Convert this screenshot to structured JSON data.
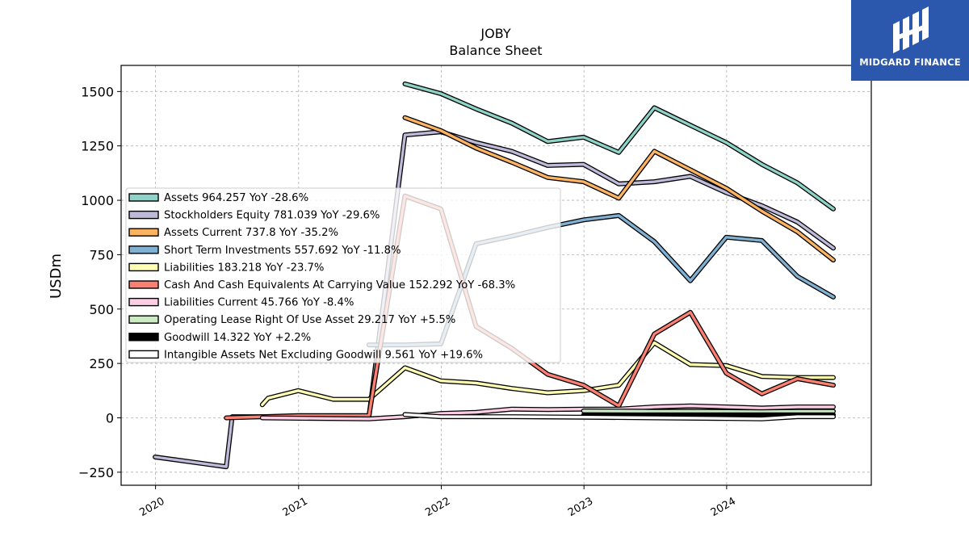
{
  "logo": {
    "text": "MIDGARD FINANCE",
    "color": "#2b57ad"
  },
  "chart_data": {
    "type": "line",
    "title": "JOBY",
    "subtitle": "Balance  Sheet",
    "xlabel": "",
    "ylabel": "USDm",
    "xlim": [
      "2019-10-05",
      "2025-01-05"
    ],
    "ylim": [
      -310,
      1620
    ],
    "yticks": [
      -250,
      0,
      250,
      500,
      750,
      1000,
      1250,
      1500
    ],
    "ytick_labels": [
      "−250",
      "0",
      "250",
      "500",
      "750",
      "1000",
      "1250",
      "1500"
    ],
    "xticks": [
      "2020-01-01",
      "2021-01-01",
      "2022-01-01",
      "2023-01-01",
      "2024-01-01"
    ],
    "xtick_labels": [
      "2020",
      "2021",
      "2022",
      "2023",
      "2024"
    ],
    "grid": true,
    "legend_position": "center-left",
    "series": [
      {
        "name": "Assets",
        "label": "Assets  964.257 YoY -28.6%",
        "color": "#8dd3c7",
        "points": [
          [
            "2021-09-30",
            1535
          ],
          [
            "2021-12-31",
            1490
          ],
          [
            "2022-03-31",
            1420
          ],
          [
            "2022-06-30",
            1355
          ],
          [
            "2022-09-30",
            1270
          ],
          [
            "2022-12-31",
            1290
          ],
          [
            "2023-03-31",
            1220
          ],
          [
            "2023-06-30",
            1425
          ],
          [
            "2023-09-30",
            1345
          ],
          [
            "2023-12-31",
            1265
          ],
          [
            "2024-03-31",
            1165
          ],
          [
            "2024-06-30",
            1080
          ],
          [
            "2024-09-30",
            960
          ]
        ]
      },
      {
        "name": "Stockholders Equity",
        "label": "Stockholders Equity  781.039 YoY -29.6%",
        "color": "#bebada",
        "points": [
          [
            "2019-12-31",
            -180
          ],
          [
            "2020-06-30",
            -225
          ],
          [
            "2020-07-15",
            5
          ],
          [
            "2020-09-30",
            5
          ],
          [
            "2021-06-30",
            5
          ],
          [
            "2021-09-30",
            1300
          ],
          [
            "2021-12-31",
            1315
          ],
          [
            "2022-03-31",
            1265
          ],
          [
            "2022-06-30",
            1225
          ],
          [
            "2022-09-30",
            1160
          ],
          [
            "2022-12-31",
            1165
          ],
          [
            "2023-03-31",
            1075
          ],
          [
            "2023-06-30",
            1085
          ],
          [
            "2023-09-30",
            1110
          ],
          [
            "2023-12-31",
            1035
          ],
          [
            "2024-03-31",
            975
          ],
          [
            "2024-06-30",
            900
          ],
          [
            "2024-09-30",
            780
          ]
        ]
      },
      {
        "name": "Assets Current",
        "label": "Assets Current  737.8 YoY -35.2%",
        "color": "#fdb462",
        "points": [
          [
            "2021-09-30",
            1380
          ],
          [
            "2021-12-31",
            1320
          ],
          [
            "2022-03-31",
            1240
          ],
          [
            "2022-06-30",
            1175
          ],
          [
            "2022-09-30",
            1105
          ],
          [
            "2022-12-31",
            1085
          ],
          [
            "2023-03-31",
            1010
          ],
          [
            "2023-06-30",
            1225
          ],
          [
            "2023-09-30",
            1140
          ],
          [
            "2023-12-31",
            1055
          ],
          [
            "2024-03-31",
            950
          ],
          [
            "2024-06-30",
            855
          ],
          [
            "2024-09-30",
            725
          ]
        ]
      },
      {
        "name": "Short Term Investments",
        "label": "Short Term Investments  557.692 YoY -11.8%",
        "color": "#80b1d3",
        "points": [
          [
            "2021-06-30",
            335
          ],
          [
            "2021-09-30",
            335
          ],
          [
            "2021-12-31",
            340
          ],
          [
            "2022-03-31",
            800
          ],
          [
            "2022-06-30",
            835
          ],
          [
            "2022-09-30",
            875
          ],
          [
            "2022-12-31",
            910
          ],
          [
            "2023-03-31",
            930
          ],
          [
            "2023-06-30",
            810
          ],
          [
            "2023-09-30",
            630
          ],
          [
            "2023-12-31",
            830
          ],
          [
            "2024-03-31",
            815
          ],
          [
            "2024-06-30",
            650
          ],
          [
            "2024-09-30",
            555
          ]
        ]
      },
      {
        "name": "Liabilities",
        "label": "Liabilities  183.218 YoY -23.7%",
        "color": "#ffffb3",
        "points": [
          [
            "2020-09-30",
            60
          ],
          [
            "2020-10-15",
            90
          ],
          [
            "2020-12-31",
            125
          ],
          [
            "2021-03-31",
            85
          ],
          [
            "2021-06-30",
            85
          ],
          [
            "2021-09-30",
            230
          ],
          [
            "2021-12-31",
            170
          ],
          [
            "2022-03-31",
            160
          ],
          [
            "2022-06-30",
            135
          ],
          [
            "2022-09-30",
            115
          ],
          [
            "2022-12-31",
            125
          ],
          [
            "2023-03-31",
            150
          ],
          [
            "2023-06-30",
            345
          ],
          [
            "2023-09-30",
            245
          ],
          [
            "2023-12-31",
            240
          ],
          [
            "2024-03-31",
            190
          ],
          [
            "2024-06-30",
            185
          ],
          [
            "2024-09-30",
            185
          ]
        ]
      },
      {
        "name": "Cash And Cash Equivalents At Carrying Value",
        "label": "Cash And Cash Equivalents At Carrying Value  152.292 YoY -68.3%",
        "color": "#fb8072",
        "points": [
          [
            "2020-06-30",
            0
          ],
          [
            "2020-12-31",
            10
          ],
          [
            "2021-06-30",
            10
          ],
          [
            "2021-09-30",
            1020
          ],
          [
            "2021-12-31",
            960
          ],
          [
            "2022-03-31",
            420
          ],
          [
            "2022-06-30",
            320
          ],
          [
            "2022-09-30",
            200
          ],
          [
            "2022-12-31",
            150
          ],
          [
            "2023-03-31",
            55
          ],
          [
            "2023-06-30",
            385
          ],
          [
            "2023-09-30",
            485
          ],
          [
            "2023-12-31",
            205
          ],
          [
            "2024-03-31",
            110
          ],
          [
            "2024-06-30",
            180
          ],
          [
            "2024-09-30",
            150
          ]
        ]
      },
      {
        "name": "Liabilities Current",
        "label": "Liabilities Current  45.766 YoY -8.4%",
        "color": "#fccde5",
        "points": [
          [
            "2020-09-30",
            0
          ],
          [
            "2020-12-31",
            -2
          ],
          [
            "2021-06-30",
            -5
          ],
          [
            "2021-09-30",
            5
          ],
          [
            "2021-12-31",
            20
          ],
          [
            "2022-03-31",
            25
          ],
          [
            "2022-06-30",
            40
          ],
          [
            "2022-09-30",
            38
          ],
          [
            "2022-12-31",
            40
          ],
          [
            "2023-03-31",
            40
          ],
          [
            "2023-06-30",
            50
          ],
          [
            "2023-09-30",
            55
          ],
          [
            "2023-12-31",
            50
          ],
          [
            "2024-03-31",
            45
          ],
          [
            "2024-06-30",
            50
          ],
          [
            "2024-09-30",
            50
          ]
        ]
      },
      {
        "name": "Operating Lease Right Of Use Asset",
        "label": "Operating Lease Right Of Use Asset  29.217 YoY +5.5%",
        "color": "#ccebc5",
        "points": [
          [
            "2022-12-31",
            32
          ],
          [
            "2023-03-31",
            31
          ],
          [
            "2023-06-30",
            30
          ],
          [
            "2023-09-30",
            30
          ],
          [
            "2023-12-31",
            29
          ],
          [
            "2024-03-31",
            28
          ],
          [
            "2024-06-30",
            30
          ],
          [
            "2024-09-30",
            30
          ]
        ]
      },
      {
        "name": "Goodwill",
        "label": "Goodwill  14.322 YoY +2.2%",
        "color": "#000000",
        "points": [
          [
            "2022-12-31",
            13
          ],
          [
            "2023-03-31",
            13
          ],
          [
            "2023-06-30",
            14
          ],
          [
            "2023-09-30",
            14
          ],
          [
            "2023-12-31",
            14
          ],
          [
            "2024-03-31",
            14
          ],
          [
            "2024-06-30",
            14
          ],
          [
            "2024-09-30",
            14
          ]
        ]
      },
      {
        "name": "Intangible Assets Net Excluding Goodwill",
        "label": "Intangible Assets Net Excluding Goodwill  9.561 YoY +19.6%",
        "color": "#ffffff",
        "points": [
          [
            "2021-09-30",
            15
          ],
          [
            "2021-12-31",
            5
          ],
          [
            "2022-06-30",
            5
          ],
          [
            "2022-12-31",
            3
          ],
          [
            "2023-06-30",
            0
          ],
          [
            "2023-12-31",
            -3
          ],
          [
            "2024-03-31",
            -5
          ],
          [
            "2024-06-30",
            5
          ],
          [
            "2024-09-30",
            5
          ]
        ]
      }
    ]
  }
}
